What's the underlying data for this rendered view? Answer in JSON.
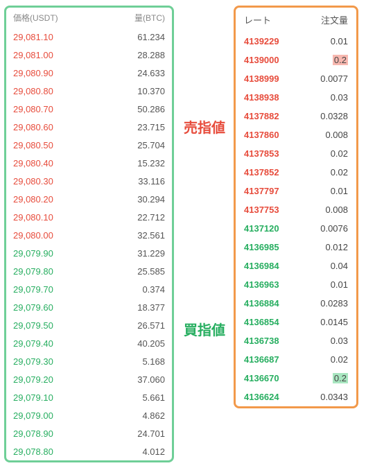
{
  "colors": {
    "left_border": "#6fcf97",
    "right_border": "#f2994a",
    "ask": "#e74c3c",
    "bid": "#27ae60",
    "label_sell": "#e74c3c",
    "label_buy": "#27ae60"
  },
  "labels": {
    "sell": "売指値",
    "buy": "買指値"
  },
  "left": {
    "header_price": "価格(USDT)",
    "header_amount": "量(BTC)",
    "asks": [
      {
        "p": "29,081.10",
        "a": "61.234"
      },
      {
        "p": "29,081.00",
        "a": "28.288"
      },
      {
        "p": "29,080.90",
        "a": "24.633"
      },
      {
        "p": "29,080.80",
        "a": "10.370"
      },
      {
        "p": "29,080.70",
        "a": "50.286"
      },
      {
        "p": "29,080.60",
        "a": "23.715"
      },
      {
        "p": "29,080.50",
        "a": "25.704"
      },
      {
        "p": "29,080.40",
        "a": "15.232"
      },
      {
        "p": "29,080.30",
        "a": "33.116"
      },
      {
        "p": "29,080.20",
        "a": "30.294"
      },
      {
        "p": "29,080.10",
        "a": "22.712"
      },
      {
        "p": "29,080.00",
        "a": "32.561"
      }
    ],
    "bids": [
      {
        "p": "29,079.90",
        "a": "31.229"
      },
      {
        "p": "29,079.80",
        "a": "25.585"
      },
      {
        "p": "29,079.70",
        "a": "0.374"
      },
      {
        "p": "29,079.60",
        "a": "18.377"
      },
      {
        "p": "29,079.50",
        "a": "26.571"
      },
      {
        "p": "29,079.40",
        "a": "40.205"
      },
      {
        "p": "29,079.30",
        "a": "5.168"
      },
      {
        "p": "29,079.20",
        "a": "37.060"
      },
      {
        "p": "29,079.10",
        "a": "5.661"
      },
      {
        "p": "29,079.00",
        "a": "4.862"
      },
      {
        "p": "29,078.90",
        "a": "24.701"
      },
      {
        "p": "29,078.80",
        "a": "4.012"
      }
    ]
  },
  "right": {
    "header_rate": "レート",
    "header_amount": "注文量",
    "asks": [
      {
        "p": "4139229",
        "a": "0.01"
      },
      {
        "p": "4139000",
        "a": "0.2",
        "hl": "red"
      },
      {
        "p": "4138999",
        "a": "0.0077"
      },
      {
        "p": "4138938",
        "a": "0.03"
      },
      {
        "p": "4137882",
        "a": "0.0328"
      },
      {
        "p": "4137860",
        "a": "0.008"
      },
      {
        "p": "4137853",
        "a": "0.02"
      },
      {
        "p": "4137852",
        "a": "0.02"
      },
      {
        "p": "4137797",
        "a": "0.01"
      },
      {
        "p": "4137753",
        "a": "0.008"
      }
    ],
    "bids": [
      {
        "p": "4137120",
        "a": "0.0076"
      },
      {
        "p": "4136985",
        "a": "0.012"
      },
      {
        "p": "4136984",
        "a": "0.04"
      },
      {
        "p": "4136963",
        "a": "0.01"
      },
      {
        "p": "4136884",
        "a": "0.0283"
      },
      {
        "p": "4136854",
        "a": "0.0145"
      },
      {
        "p": "4136738",
        "a": "0.03"
      },
      {
        "p": "4136687",
        "a": "0.02"
      },
      {
        "p": "4136670",
        "a": "0.2",
        "hl": "green"
      },
      {
        "p": "4136624",
        "a": "0.0343"
      }
    ]
  }
}
